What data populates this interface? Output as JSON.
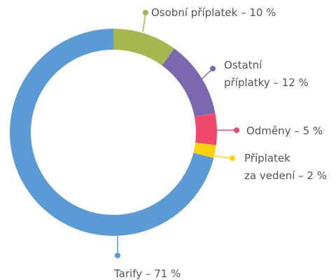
{
  "chart_data": {
    "type": "donut",
    "categories": [
      "Osobní příplatek",
      "Ostatní příplatky",
      "Odměny",
      "Příplatek za vedení",
      "Tarify"
    ],
    "values": [
      10,
      12,
      5,
      2,
      71
    ],
    "labels": [
      [
        "Osobní příplatek – 10 %"
      ],
      [
        "Ostatní",
        "příplatky – 12 %"
      ],
      [
        "Odměny – 5 %"
      ],
      [
        "Příplatek",
        "za vedení – 2 %"
      ],
      [
        "Tarify – 71 %"
      ]
    ],
    "colors": [
      "#a5b84f",
      "#7b68ae",
      "#ef4a6e",
      "#fcd20b",
      "#5b9bd5"
    ]
  }
}
